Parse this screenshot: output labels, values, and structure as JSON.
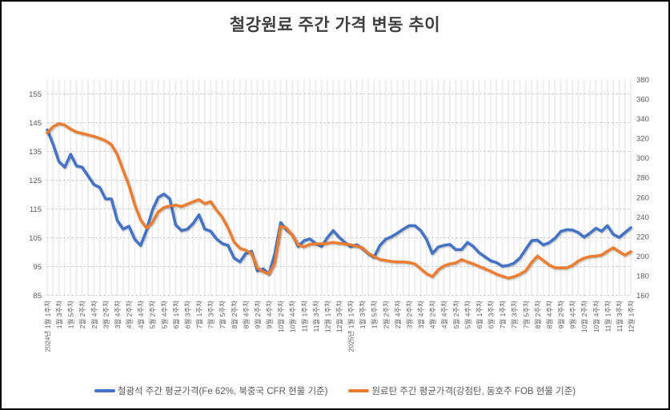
{
  "title": "철강원료 주간 가격 변동 추이",
  "chart_data": {
    "type": "line",
    "grid": {
      "horizontal": "dashed",
      "vertical": "solid",
      "legend_position": "bottom"
    },
    "left_axis": {
      "min": 85,
      "max": 160,
      "ticks": [
        85,
        95,
        105,
        115,
        125,
        135,
        145,
        155
      ]
    },
    "right_axis": {
      "min": 160,
      "max": 380,
      "ticks": [
        160,
        180,
        200,
        220,
        240,
        260,
        280,
        300,
        320,
        340,
        360,
        380
      ]
    },
    "x_tick_interval": 2,
    "x_labels": [
      "2024년 1월 1주차",
      "1월 3주차",
      "1월 5주차",
      "2월 2주차",
      "2월 4주차",
      "3월 2주차",
      "3월 4주차",
      "4월 2주차",
      "4월 4주차",
      "5월 2주차",
      "5월 4주차",
      "6월 1주차",
      "6월 3주차",
      "7월 1주차",
      "7월 3주차",
      "7월 5주차",
      "8월 2주차",
      "8월 4주차",
      "9월 2주차",
      "9월 4주차",
      "10월 2주차",
      "10월 4주차",
      "11월 1주차",
      "11월 3주차",
      "12월 1주차",
      "12월 3주차",
      "2025년 1월 1주차",
      "1월 3주차",
      "1월 5주차",
      "2월 2주차",
      "2월 4주차",
      "3월 2주차",
      "3월 4주차",
      "4월 2주차",
      "4월 4주차",
      "5월 2주차",
      "5월 4주차",
      "6월 1주차",
      "6월 3주차",
      "7월 1주차",
      "7월 3주차",
      "7월 5주차",
      "8월 2주차",
      "8월 4주차",
      "9월 2주차",
      "9월 4주차",
      "10월 2주차",
      "10월 4주차",
      "11월 1주차",
      "11월 3주차",
      "12월 1주차"
    ],
    "series": [
      {
        "name": "철광석 주간 평균가격(Fe 62%, 북중국 CFR 현물 기준)",
        "color": "#4472C4",
        "axis": "left",
        "values": [
          142.5,
          137.5,
          131.5,
          129.5,
          134,
          130,
          129.5,
          126.5,
          123.5,
          122.5,
          118.5,
          118.5,
          111,
          108,
          109,
          104.5,
          102.3,
          107.5,
          114.5,
          119,
          120.2,
          118.5,
          109.5,
          107.5,
          108,
          110,
          113,
          108,
          107.3,
          104.6,
          103,
          102.3,
          98,
          96.6,
          99.5,
          100.3,
          93.5,
          94.2,
          92.4,
          99.5,
          110.3,
          107.7,
          106,
          102,
          104,
          104.6,
          103,
          102,
          105,
          107.5,
          105.2,
          103.4,
          101.9,
          102.6,
          101.3,
          99.5,
          98.2,
          102.3,
          104.5,
          105.4,
          106.6,
          108,
          109.2,
          109.2,
          107.5,
          104.4,
          99.5,
          101.8,
          102.4,
          102.7,
          100.9,
          100.9,
          103.4,
          102,
          99.8,
          98.4,
          97,
          96.4,
          95.1,
          95.4,
          96.2,
          98,
          101,
          104,
          104.2,
          102.5,
          103.3,
          104.8,
          107.2,
          107.8,
          107.7,
          106.8,
          105.2,
          106.6,
          108.3,
          107.3,
          109.2,
          106.2,
          105.1,
          106.8,
          108.5
        ]
      },
      {
        "name": "원료탄 주간 평균가격(강점탄, 동호주 FOB 현물 기준)",
        "color": "#ED7D31",
        "axis": "right",
        "values": [
          325.5,
          332,
          335,
          333.5,
          329.5,
          326.5,
          325,
          323.5,
          322,
          320,
          317.5,
          313.5,
          303.5,
          287.5,
          272,
          252.5,
          237,
          228.5,
          234,
          245,
          249.5,
          251,
          252,
          250.5,
          253,
          255.5,
          257.5,
          253.5,
          255.5,
          247,
          239.5,
          228.5,
          214.5,
          208,
          206,
          202.5,
          188,
          184,
          182,
          192.5,
          230.5,
          228.5,
          221,
          211.5,
          209.5,
          212,
          212.5,
          212.5,
          213,
          214,
          213,
          212.5,
          211.5,
          210,
          208.5,
          203,
          199.5,
          196.5,
          195.5,
          194.5,
          194,
          194,
          193.5,
          192,
          187,
          182,
          179,
          186,
          190,
          192,
          193,
          196.5,
          194,
          192,
          189.5,
          187,
          184.5,
          181.5,
          179.5,
          177.5,
          179,
          181.5,
          185,
          193.5,
          200,
          195.5,
          191,
          188,
          188,
          188,
          190.5,
          195,
          198,
          199.5,
          200,
          201,
          205,
          208.5,
          204.5,
          201,
          204.5
        ]
      }
    ]
  }
}
